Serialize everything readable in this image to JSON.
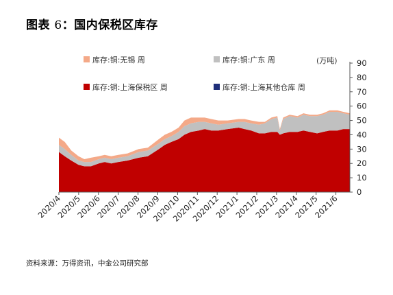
{
  "figure": {
    "title_prefix": "图表",
    "title_num": "6",
    "title_text": "：国内保税区库存",
    "source": "资料来源：万得资讯，中金公司研究部"
  },
  "chart_data": {
    "type": "area",
    "stacked": true,
    "title": "国内保税区库存",
    "unit_label": "(万吨)",
    "y_axis_side": "right",
    "ylim": [
      0,
      90
    ],
    "yticks": [
      "0",
      "10",
      "20",
      "30",
      "40",
      "50",
      "60",
      "70",
      "80",
      "90"
    ],
    "x_ticks": [
      "2020/4",
      "2020/5",
      "2020/6",
      "2020/7",
      "2020/8",
      "2020/9",
      "2020/10",
      "2020/11",
      "2020/12",
      "2021/1",
      "2021/2",
      "2021/3",
      "2021/4",
      "2021/5",
      "2021/6"
    ],
    "x_dates": [
      "2020-04-01",
      "2020-04-10",
      "2020-04-20",
      "2020-05-01",
      "2020-05-10",
      "2020-05-20",
      "2020-06-01",
      "2020-06-10",
      "2020-06-20",
      "2020-07-01",
      "2020-07-15",
      "2020-08-01",
      "2020-08-15",
      "2020-09-01",
      "2020-09-10",
      "2020-09-20",
      "2020-10-01",
      "2020-10-10",
      "2020-10-20",
      "2020-11-01",
      "2020-11-10",
      "2020-11-20",
      "2020-12-01",
      "2020-12-15",
      "2021-01-01",
      "2021-01-10",
      "2021-01-20",
      "2021-02-01",
      "2021-02-10",
      "2021-02-20",
      "2021-03-01",
      "2021-03-05",
      "2021-03-10",
      "2021-03-20",
      "2021-04-01",
      "2021-04-10",
      "2021-04-20",
      "2021-05-01",
      "2021-05-10",
      "2021-05-20",
      "2021-06-01",
      "2021-06-10",
      "2021-06-20"
    ],
    "series": [
      {
        "name": "库存:铜:上海保税区 周",
        "color": "#c00000",
        "values": [
          28,
          25,
          22,
          19,
          18,
          18,
          20,
          21,
          20,
          21,
          22,
          24,
          25,
          30,
          33,
          35,
          37,
          40,
          42,
          43,
          44,
          43,
          43,
          44,
          45,
          44,
          43,
          41,
          41,
          42,
          42,
          40,
          41,
          42,
          42,
          43,
          42,
          41,
          42,
          43,
          43,
          44,
          44
        ]
      },
      {
        "name": "库存:铜:广东 周",
        "color": "#c0c0c0",
        "values": [
          5,
          5,
          4,
          3,
          3,
          3,
          3,
          3,
          3,
          3,
          3,
          4,
          4,
          4,
          4,
          4,
          5,
          6,
          6,
          6,
          5,
          5,
          4,
          4,
          4,
          5,
          5,
          6,
          7,
          9,
          10,
          3,
          10,
          11,
          10,
          11,
          11,
          12,
          12,
          13,
          13,
          11,
          10
        ]
      },
      {
        "name": "库存:铜:无锡 周",
        "color": "#f4a988",
        "values": [
          5,
          5,
          3,
          3,
          2,
          3,
          2,
          2,
          2,
          2,
          2,
          2,
          2,
          3,
          3,
          3,
          3,
          4,
          4,
          3,
          3,
          3,
          3,
          2,
          2,
          2,
          2,
          2,
          1,
          1,
          1,
          1,
          1,
          1,
          1,
          1,
          1,
          1,
          1,
          1,
          1,
          1,
          1
        ]
      },
      {
        "name": "库存:铜:上海其他仓库 周",
        "color": "#1f2f7a",
        "values": [
          0,
          0,
          0,
          0,
          0,
          0,
          0,
          0,
          0,
          0,
          0,
          0,
          0,
          0,
          0,
          0,
          0,
          0,
          0,
          0,
          0,
          0,
          0,
          0,
          0,
          0,
          0,
          0,
          0,
          0,
          0,
          0,
          0,
          0,
          0,
          0,
          0,
          0,
          0,
          0,
          0,
          0,
          0
        ]
      }
    ],
    "legend": [
      {
        "name": "库存:铜:无锡 周",
        "color": "#f4a988"
      },
      {
        "name": "库存:铜:广东 周",
        "color": "#c0c0c0"
      },
      {
        "name": "库存:铜:上海保税区 周",
        "color": "#c00000"
      },
      {
        "name": "库存:铜:上海其他仓库 周",
        "color": "#1f2f7a"
      }
    ],
    "legend_position": "top-left",
    "grid": false
  }
}
